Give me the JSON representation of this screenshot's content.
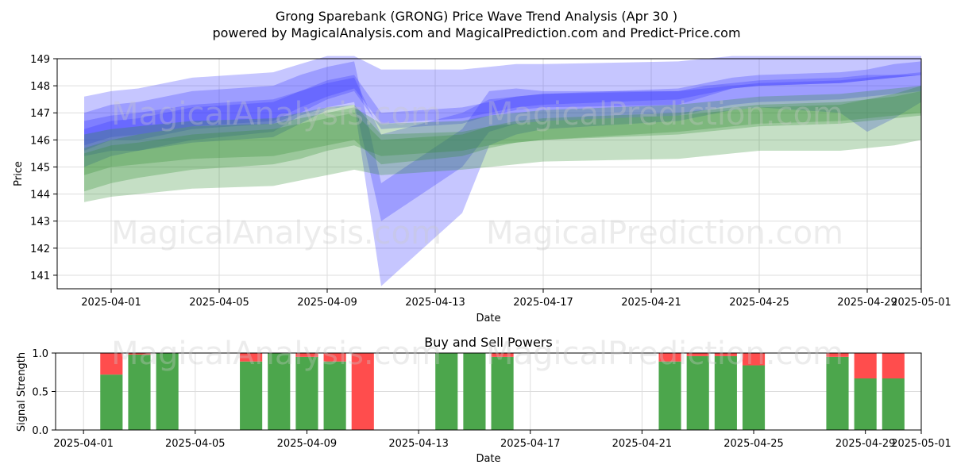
{
  "header": {
    "title": "Grong Sparebank (GRONG) Price Wave Trend Analysis (Apr 30 )",
    "subtitle": "powered by MagicalAnalysis.com and MagicalPrediction.com and Predict-Price.com"
  },
  "watermarks": [
    "MagicalAnalysis.com",
    "MagicalPrediction.com"
  ],
  "colors": {
    "blue_band": "#3333ff",
    "green_band": "#2e8b2e",
    "buy": "#4ca64c",
    "sell": "#ff4d4d",
    "grid": "#dddddd"
  },
  "chart_data": [
    {
      "type": "area",
      "title": "",
      "xlabel": "Date",
      "ylabel": "Price",
      "ylim": [
        140.5,
        149
      ],
      "xlim": [
        "2025-03-30",
        "2025-05-01"
      ],
      "grid": true,
      "x_ticks": [
        "2025-04-01",
        "2025-04-05",
        "2025-04-09",
        "2025-04-13",
        "2025-04-17",
        "2025-04-21",
        "2025-04-25",
        "2025-04-29",
        "2025-05-01"
      ],
      "y_ticks": [
        141,
        142,
        143,
        144,
        145,
        146,
        147,
        148,
        149
      ],
      "x": [
        "2025-03-31",
        "2025-04-01",
        "2025-04-02",
        "2025-04-04",
        "2025-04-07",
        "2025-04-08",
        "2025-04-09",
        "2025-04-10",
        "2025-04-11",
        "2025-04-14",
        "2025-04-15",
        "2025-04-16",
        "2025-04-17",
        "2025-04-22",
        "2025-04-23",
        "2025-04-24",
        "2025-04-25",
        "2025-04-28",
        "2025-04-29",
        "2025-04-30",
        "2025-05-01"
      ],
      "series": [
        {
          "color": "blue",
          "bands": [
            {
              "low": [
                145.6,
                146.0,
                146.0,
                146.4,
                146.6,
                147.0,
                147.5,
                147.8,
                146.4,
                146.6,
                146.9,
                147.1,
                147.2,
                147.3,
                147.6,
                147.9,
                148.0,
                148.1,
                148.2,
                148.3,
                148.4
              ],
              "high": [
                147.6,
                147.8,
                147.9,
                148.3,
                148.5,
                148.8,
                149.1,
                149.1,
                148.6,
                148.6,
                148.7,
                148.8,
                148.8,
                148.9,
                149.0,
                149.1,
                149.1,
                149.1,
                149.1,
                149.1,
                149.1
              ]
            },
            {
              "low": [
                145.8,
                146.1,
                146.2,
                146.5,
                146.7,
                147.2,
                147.6,
                147.9,
                146.6,
                146.8,
                147.0,
                147.2,
                147.3,
                147.5,
                147.7,
                147.9,
                148.0,
                148.1,
                148.2,
                148.3,
                148.4
              ],
              "high": [
                146.7,
                146.9,
                147.0,
                147.3,
                147.5,
                147.8,
                148.2,
                148.4,
                147.0,
                147.2,
                147.4,
                147.6,
                147.7,
                147.9,
                148.1,
                148.3,
                148.4,
                148.5,
                148.6,
                148.8,
                148.9
              ]
            },
            {
              "low": [
                145.4,
                145.6,
                145.6,
                145.9,
                146.1,
                146.6,
                147.1,
                147.3,
                140.6,
                143.3,
                145.8,
                146.2,
                146.4,
                146.7,
                146.9,
                147.1,
                147.2,
                147.0,
                146.3,
                146.8,
                147.4
              ],
              "high": [
                147.0,
                147.3,
                147.4,
                147.8,
                148.0,
                148.4,
                148.7,
                148.9,
                144.4,
                146.4,
                147.8,
                147.9,
                147.8,
                147.8,
                148.0,
                148.1,
                148.2,
                148.3,
                148.4,
                148.4,
                148.4
              ]
            },
            {
              "low": [
                145.0,
                145.4,
                145.6,
                146.0,
                146.3,
                146.9,
                147.2,
                147.4,
                143.0,
                145.0,
                146.3,
                146.6,
                146.7,
                146.9,
                147.1,
                147.3,
                147.4,
                147.5,
                147.6,
                147.7,
                147.8
              ],
              "high": [
                146.4,
                146.7,
                146.8,
                147.2,
                147.4,
                147.8,
                148.1,
                148.3,
                146.2,
                147.0,
                147.5,
                147.6,
                147.7,
                147.8,
                147.9,
                148.0,
                148.1,
                148.2,
                148.3,
                148.4,
                148.5
              ]
            }
          ]
        },
        {
          "color": "green",
          "bands": [
            {
              "low": [
                143.7,
                143.9,
                144.0,
                144.2,
                144.3,
                144.5,
                144.7,
                144.9,
                144.7,
                144.9,
                145.0,
                145.1,
                145.2,
                145.3,
                145.4,
                145.5,
                145.6,
                145.6,
                145.7,
                145.8,
                146.0
              ],
              "high": [
                146.2,
                146.4,
                146.5,
                146.7,
                146.8,
                147.0,
                147.2,
                147.3,
                146.2,
                146.3,
                146.5,
                146.6,
                146.7,
                146.9,
                147.0,
                147.1,
                147.2,
                147.3,
                147.5,
                147.7,
                148.0
              ]
            },
            {
              "low": [
                144.1,
                144.4,
                144.6,
                144.9,
                145.1,
                145.3,
                145.6,
                145.8,
                145.4,
                145.6,
                145.8,
                145.9,
                146.0,
                146.2,
                146.3,
                146.4,
                146.5,
                146.6,
                146.7,
                146.8,
                146.9
              ],
              "high": [
                145.7,
                146.0,
                146.2,
                146.5,
                146.6,
                146.8,
                147.0,
                147.2,
                146.6,
                146.7,
                146.9,
                147.0,
                147.1,
                147.3,
                147.4,
                147.5,
                147.6,
                147.7,
                147.8,
                147.9,
                148.0
              ]
            },
            {
              "low": [
                144.7,
                145.0,
                145.1,
                145.3,
                145.4,
                145.6,
                145.8,
                146.0,
                145.1,
                145.4,
                145.7,
                145.9,
                146.0,
                146.3,
                146.4,
                146.5,
                146.6,
                146.7,
                146.8,
                146.9,
                147.0
              ],
              "high": [
                145.5,
                145.8,
                145.9,
                146.2,
                146.4,
                146.6,
                146.8,
                147.0,
                146.0,
                146.2,
                146.5,
                146.7,
                146.8,
                147.0,
                147.1,
                147.2,
                147.3,
                147.4,
                147.5,
                147.6,
                147.8
              ]
            }
          ]
        }
      ]
    },
    {
      "type": "bar",
      "title": "Buy and Sell Powers",
      "xlabel": "Date",
      "ylabel": "Signal Strength",
      "ylim": [
        0,
        1
      ],
      "xlim": [
        "2025-03-31",
        "2025-05-01"
      ],
      "grid": true,
      "stacked": true,
      "x_ticks": [
        "2025-04-01",
        "2025-04-05",
        "2025-04-09",
        "2025-04-13",
        "2025-04-17",
        "2025-04-21",
        "2025-04-25",
        "2025-04-29",
        "2025-05-01"
      ],
      "y_ticks": [
        "0.0",
        "0.5",
        "1.0"
      ],
      "categories": [
        "2025-04-02",
        "2025-04-03",
        "2025-04-04",
        "2025-04-07",
        "2025-04-08",
        "2025-04-09",
        "2025-04-10",
        "2025-04-11",
        "2025-04-14",
        "2025-04-15",
        "2025-04-16",
        "2025-04-22",
        "2025-04-23",
        "2025-04-24",
        "2025-04-25",
        "2025-04-28",
        "2025-04-29",
        "2025-04-30"
      ],
      "series": [
        {
          "color": "green",
          "values": [
            0.72,
            0.98,
            1.0,
            0.89,
            1.0,
            0.95,
            0.89,
            0.0,
            1.0,
            1.0,
            0.95,
            0.89,
            0.96,
            0.96,
            0.84,
            0.95,
            0.67,
            0.67
          ]
        },
        {
          "color": "red",
          "values": [
            0.28,
            0.02,
            0.0,
            0.11,
            0.0,
            0.05,
            0.11,
            1.0,
            0.0,
            0.0,
            0.05,
            0.11,
            0.04,
            0.04,
            0.16,
            0.05,
            0.33,
            0.33
          ]
        }
      ]
    }
  ]
}
